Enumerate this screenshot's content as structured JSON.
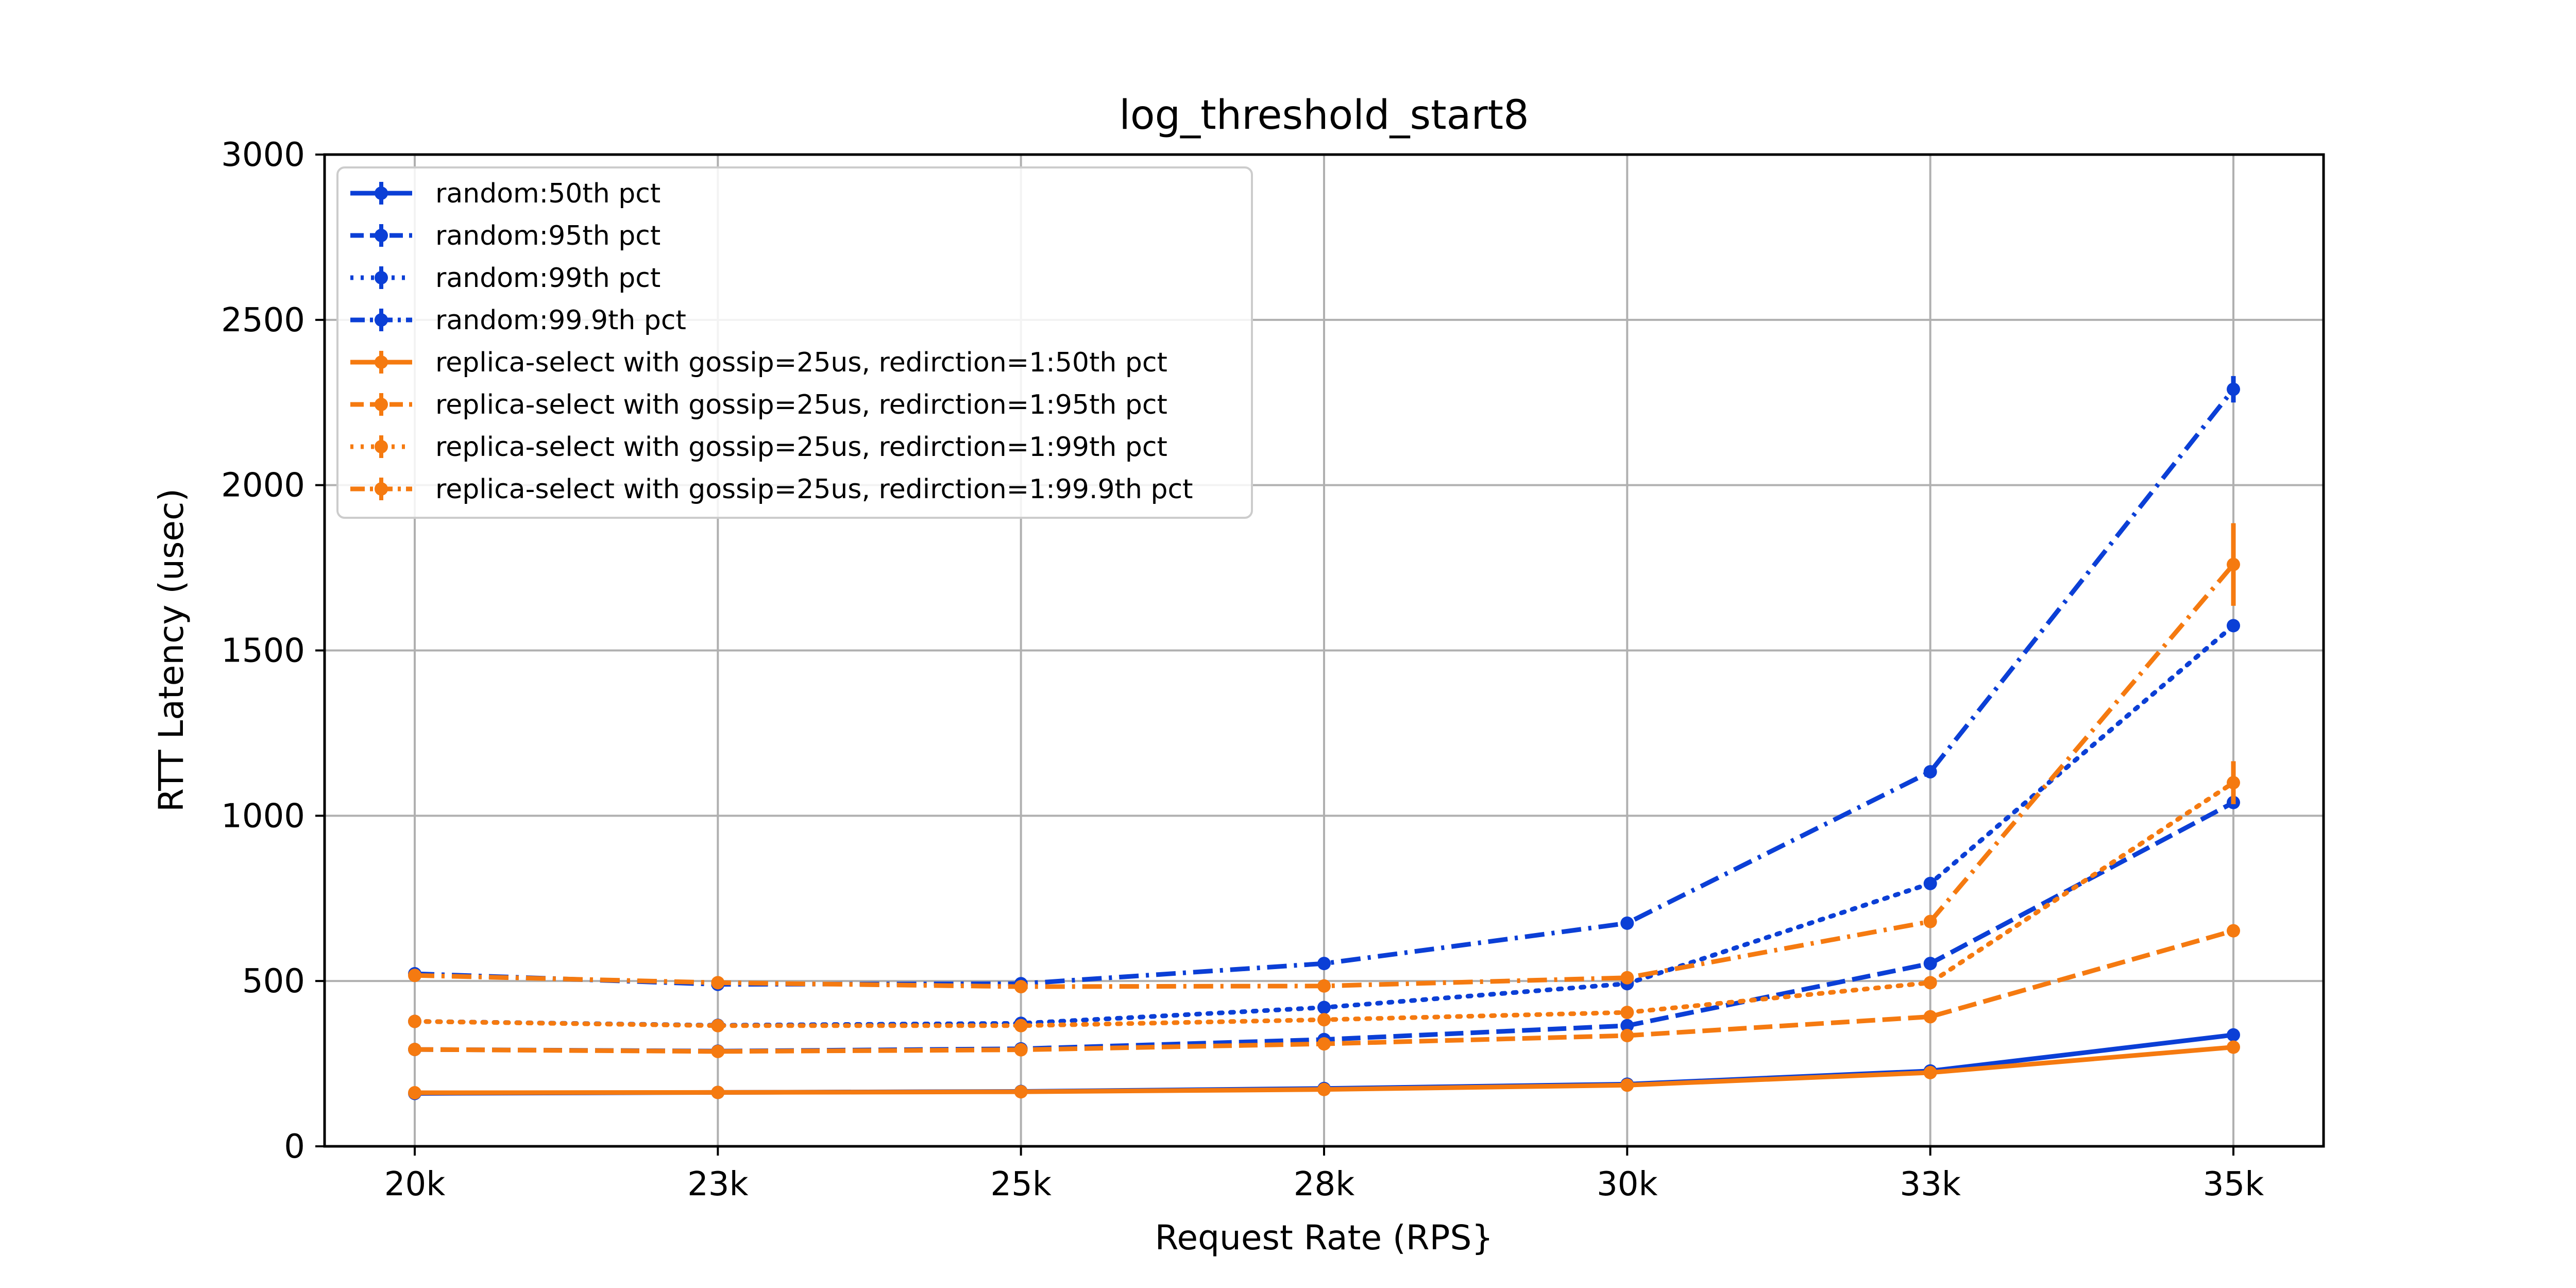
{
  "chart_data": {
    "type": "line",
    "title": "log_threshold_start8",
    "xlabel": "Request Rate (RPS}",
    "ylabel": "RTT Latency (usec)",
    "categories": [
      "20k",
      "23k",
      "25k",
      "28k",
      "30k",
      "33k",
      "35k"
    ],
    "ylim": [
      0,
      3000
    ],
    "yticks": [
      0,
      500,
      1000,
      1500,
      2000,
      2500,
      3000
    ],
    "grid": true,
    "legend_position": "top-left",
    "colors": {
      "random": "#0b3fd6",
      "replica": "#f57a10"
    },
    "series": [
      {
        "name": "random:50th pct",
        "color": "#0b3fd6",
        "style": "solid",
        "values": [
          160,
          163,
          166,
          175,
          188,
          228,
          337
        ],
        "errors": [
          0,
          0,
          0,
          0,
          0,
          0,
          0
        ]
      },
      {
        "name": "random:95th pct",
        "color": "#0b3fd6",
        "style": "dashed",
        "values": [
          293,
          288,
          295,
          323,
          365,
          553,
          1040
        ],
        "errors": [
          0,
          0,
          0,
          0,
          0,
          0,
          0
        ]
      },
      {
        "name": "random:99th pct",
        "color": "#0b3fd6",
        "style": "dotted",
        "values": [
          378,
          366,
          372,
          420,
          492,
          795,
          1575
        ],
        "errors": [
          0,
          0,
          0,
          0,
          0,
          0,
          0
        ]
      },
      {
        "name": "random:99.9th pct",
        "color": "#0b3fd6",
        "style": "dashdot",
        "values": [
          522,
          490,
          492,
          553,
          675,
          1133,
          2290
        ],
        "errors": [
          0,
          0,
          0,
          0,
          0,
          0,
          40
        ]
      },
      {
        "name": "replica-select with gossip=25us, redirction=1:50th pct",
        "color": "#f57a10",
        "style": "solid",
        "values": [
          162,
          163,
          165,
          172,
          185,
          223,
          300
        ],
        "errors": [
          0,
          0,
          0,
          0,
          0,
          0,
          0
        ]
      },
      {
        "name": "replica-select with gossip=25us, redirction=1:95th pct",
        "color": "#f57a10",
        "style": "dashed",
        "values": [
          293,
          287,
          292,
          310,
          335,
          392,
          652
        ],
        "errors": [
          0,
          0,
          0,
          0,
          0,
          0,
          0
        ]
      },
      {
        "name": "replica-select with gossip=25us, redirction=1:99th pct",
        "color": "#f57a10",
        "style": "dotted",
        "values": [
          378,
          365,
          365,
          383,
          405,
          495,
          1100
        ],
        "errors": [
          0,
          0,
          0,
          0,
          0,
          0,
          65
        ]
      },
      {
        "name": "replica-select with gossip=25us, redirction=1:99.9th pct",
        "color": "#f57a10",
        "style": "dashdot",
        "values": [
          517,
          495,
          483,
          485,
          510,
          680,
          1760
        ],
        "errors": [
          0,
          0,
          0,
          0,
          0,
          0,
          125
        ]
      }
    ]
  }
}
